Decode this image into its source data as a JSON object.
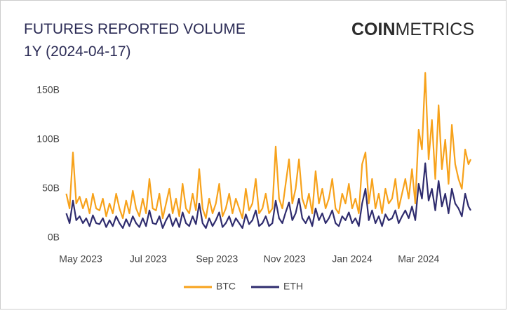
{
  "chart_data": {
    "type": "line",
    "title": "FUTURES REPORTED VOLUME",
    "subtitle": "1Y (2024-04-17)",
    "brand_bold": "COIN",
    "brand_light": "METRICS",
    "x": [
      0,
      3,
      6,
      9,
      12,
      15,
      18,
      21,
      24,
      27,
      30,
      33,
      36,
      39,
      42,
      45,
      48,
      51,
      54,
      57,
      60,
      63,
      66,
      69,
      72,
      75,
      78,
      81,
      84,
      87,
      90,
      93,
      96,
      99,
      102,
      105,
      108,
      111,
      114,
      117,
      120,
      123,
      126,
      129,
      132,
      135,
      138,
      141,
      144,
      147,
      150,
      153,
      156,
      159,
      162,
      165,
      168,
      171,
      174,
      177,
      180,
      183,
      186,
      189,
      192,
      195,
      198,
      201,
      204,
      207,
      210,
      213,
      216,
      219,
      222,
      225,
      228,
      231,
      234,
      237,
      240,
      243,
      246,
      249,
      252,
      255,
      258,
      261,
      264,
      267,
      270,
      273,
      276,
      279,
      282,
      285,
      288,
      291,
      294,
      297,
      300,
      303,
      306,
      309,
      312,
      315,
      318,
      321,
      324,
      327,
      330,
      333,
      336,
      339,
      342,
      345,
      348,
      351,
      354,
      357,
      360,
      363,
      365
    ],
    "xlim": [
      0,
      365
    ],
    "xticks": [
      {
        "value": 13,
        "label": "May 2023"
      },
      {
        "value": 74,
        "label": "Jul 2023"
      },
      {
        "value": 136,
        "label": "Sep 2023"
      },
      {
        "value": 197,
        "label": "Nov 2023"
      },
      {
        "value": 258,
        "label": "Jan 2024"
      },
      {
        "value": 318,
        "label": "Mar 2024"
      }
    ],
    "ylim": [
      0,
      170
    ],
    "yticks": [
      {
        "value": 0,
        "label": "0B"
      },
      {
        "value": 50,
        "label": "50B"
      },
      {
        "value": 100,
        "label": "100B"
      },
      {
        "value": 150,
        "label": "150B"
      }
    ],
    "grid": false,
    "legend": "bottom",
    "series": [
      {
        "name": "BTC",
        "color": "#f7a21b",
        "values": [
          45,
          30,
          87,
          35,
          42,
          30,
          40,
          25,
          45,
          30,
          28,
          40,
          22,
          35,
          25,
          45,
          30,
          20,
          38,
          25,
          48,
          30,
          22,
          40,
          25,
          60,
          30,
          28,
          45,
          20,
          35,
          50,
          25,
          40,
          22,
          55,
          30,
          25,
          45,
          28,
          70,
          30,
          20,
          40,
          25,
          35,
          55,
          22,
          30,
          45,
          25,
          40,
          30,
          20,
          50,
          28,
          35,
          60,
          25,
          30,
          45,
          25,
          30,
          93,
          40,
          30,
          55,
          80,
          35,
          50,
          80,
          40,
          30,
          45,
          25,
          68,
          35,
          50,
          30,
          40,
          60,
          30,
          25,
          45,
          35,
          55,
          30,
          40,
          25,
          75,
          87,
          35,
          60,
          30,
          45,
          25,
          50,
          35,
          40,
          60,
          30,
          45,
          60,
          40,
          70,
          35,
          110,
          90,
          168,
          80,
          120,
          60,
          135,
          70,
          100,
          55,
          115,
          75,
          60,
          50,
          90,
          75,
          80
        ]
      },
      {
        "name": "ETH",
        "color": "#2f2c6e",
        "values": [
          25,
          15,
          38,
          18,
          22,
          15,
          20,
          12,
          23,
          15,
          14,
          20,
          11,
          18,
          12,
          22,
          15,
          10,
          19,
          12,
          22,
          15,
          11,
          20,
          12,
          28,
          15,
          14,
          22,
          10,
          18,
          24,
          12,
          20,
          11,
          26,
          15,
          12,
          22,
          14,
          35,
          15,
          10,
          20,
          12,
          18,
          26,
          11,
          15,
          22,
          12,
          20,
          15,
          10,
          24,
          14,
          18,
          28,
          12,
          15,
          22,
          12,
          15,
          38,
          20,
          15,
          26,
          36,
          18,
          25,
          40,
          20,
          15,
          22,
          12,
          30,
          18,
          25,
          15,
          20,
          28,
          15,
          12,
          22,
          18,
          26,
          15,
          20,
          12,
          35,
          50,
          18,
          28,
          15,
          22,
          12,
          24,
          18,
          20,
          28,
          15,
          22,
          28,
          20,
          32,
          18,
          55,
          40,
          76,
          38,
          50,
          28,
          58,
          32,
          45,
          25,
          50,
          35,
          30,
          22,
          45,
          32,
          28
        ]
      }
    ]
  }
}
